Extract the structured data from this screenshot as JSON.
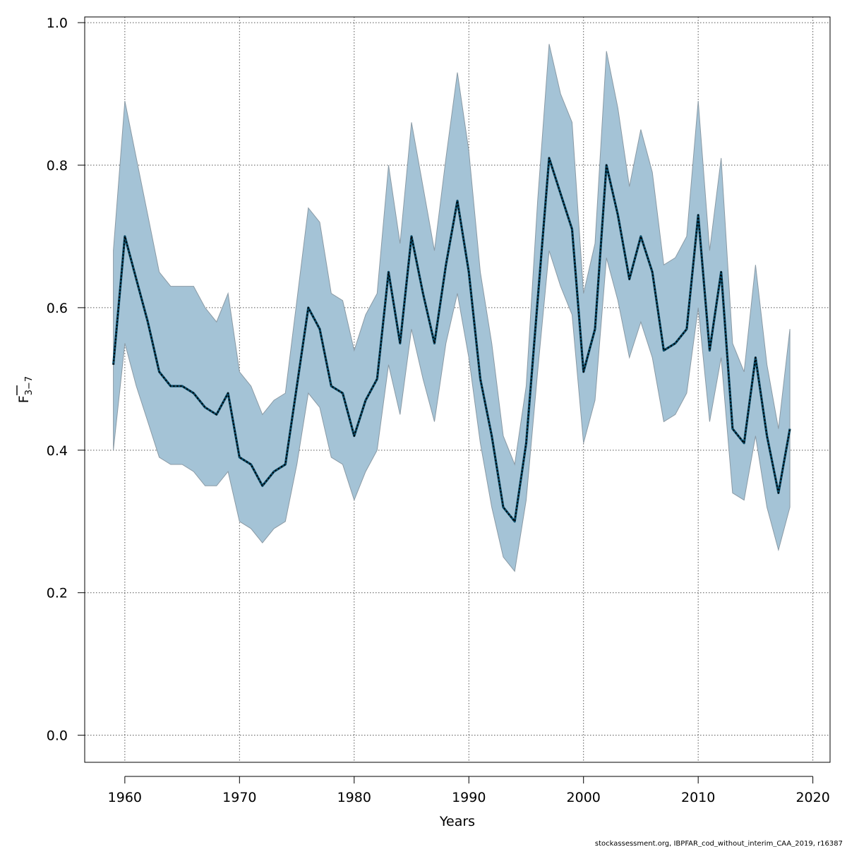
{
  "chart_data": {
    "type": "area",
    "title": "",
    "xlabel": "Years",
    "ylabel_main": "F",
    "ylabel_sub": "3−7",
    "xlim": [
      1956.5,
      2021.5
    ],
    "ylim": [
      -0.038,
      1.008
    ],
    "xticks": [
      1960,
      1970,
      1980,
      1990,
      2000,
      2010,
      2020
    ],
    "yticks": [
      0.0,
      0.2,
      0.4,
      0.6,
      0.8,
      1.0
    ],
    "ytick_labels": [
      "0.0",
      "0.2",
      "0.4",
      "0.6",
      "0.8",
      "1.0"
    ],
    "grid": true,
    "colors": {
      "band_fill": "#a4c3d6",
      "band_stroke": "#8a9aa5",
      "line": "#000000",
      "line_highlight": "#0a4a66",
      "grid": "#555555",
      "axis": "#000000"
    },
    "x": [
      1959,
      1960,
      1961,
      1962,
      1963,
      1964,
      1965,
      1966,
      1967,
      1968,
      1969,
      1970,
      1971,
      1972,
      1973,
      1974,
      1975,
      1976,
      1977,
      1978,
      1979,
      1980,
      1981,
      1982,
      1983,
      1984,
      1985,
      1986,
      1987,
      1988,
      1989,
      1990,
      1991,
      1992,
      1993,
      1994,
      1995,
      1996,
      1997,
      1998,
      1999,
      2000,
      2001,
      2002,
      2003,
      2004,
      2005,
      2006,
      2007,
      2008,
      2009,
      2010,
      2011,
      2012,
      2013,
      2014,
      2015,
      2016,
      2017,
      2018
    ],
    "series": [
      {
        "name": "",
        "values": [
          0.52,
          0.7,
          0.64,
          0.58,
          0.51,
          0.49,
          0.49,
          0.48,
          0.46,
          0.45,
          0.48,
          0.39,
          0.38,
          0.35,
          0.37,
          0.38,
          0.49,
          0.6,
          0.57,
          0.49,
          0.48,
          0.42,
          0.47,
          0.5,
          0.65,
          0.55,
          0.7,
          0.62,
          0.55,
          0.66,
          0.75,
          0.65,
          0.5,
          0.42,
          0.32,
          0.3,
          0.41,
          0.61,
          0.81,
          0.76,
          0.71,
          0.51,
          0.57,
          0.8,
          0.73,
          0.64,
          0.7,
          0.65,
          0.54,
          0.55,
          0.57,
          0.73,
          0.54,
          0.65,
          0.43,
          0.41,
          0.53,
          0.42,
          0.34,
          0.43
        ],
        "lower": [
          0.4,
          0.55,
          0.49,
          0.44,
          0.39,
          0.38,
          0.38,
          0.37,
          0.35,
          0.35,
          0.37,
          0.3,
          0.29,
          0.27,
          0.29,
          0.3,
          0.38,
          0.48,
          0.46,
          0.39,
          0.38,
          0.33,
          0.37,
          0.4,
          0.52,
          0.45,
          0.57,
          0.5,
          0.44,
          0.55,
          0.62,
          0.53,
          0.41,
          0.32,
          0.25,
          0.23,
          0.33,
          0.51,
          0.68,
          0.63,
          0.59,
          0.41,
          0.47,
          0.67,
          0.61,
          0.53,
          0.58,
          0.53,
          0.44,
          0.45,
          0.48,
          0.6,
          0.44,
          0.53,
          0.34,
          0.33,
          0.42,
          0.32,
          0.26,
          0.32
        ],
        "upper": [
          0.68,
          0.89,
          0.81,
          0.73,
          0.65,
          0.63,
          0.63,
          0.63,
          0.6,
          0.58,
          0.62,
          0.51,
          0.49,
          0.45,
          0.47,
          0.48,
          0.61,
          0.74,
          0.72,
          0.62,
          0.61,
          0.54,
          0.59,
          0.62,
          0.8,
          0.69,
          0.86,
          0.77,
          0.68,
          0.81,
          0.93,
          0.82,
          0.65,
          0.55,
          0.42,
          0.38,
          0.49,
          0.75,
          0.97,
          0.9,
          0.86,
          0.62,
          0.69,
          0.96,
          0.88,
          0.77,
          0.85,
          0.79,
          0.66,
          0.67,
          0.7,
          0.89,
          0.68,
          0.81,
          0.55,
          0.51,
          0.66,
          0.52,
          0.43,
          0.57
        ]
      }
    ]
  },
  "footer": {
    "credit": "stockassessment.org, IBPFAR_cod_without_interim_CAA_2019, r16387"
  }
}
